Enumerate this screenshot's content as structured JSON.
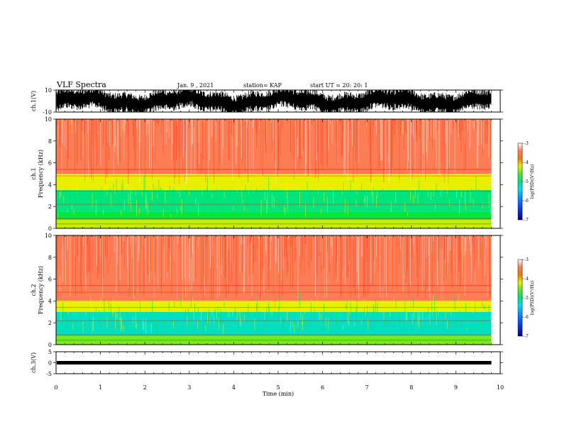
{
  "header": {
    "title": "VLF Spectra",
    "date": "Jan. 9 , 2021",
    "station": "station= KAP",
    "start": "start UT = 20: 20: 1"
  },
  "chart_data": [
    {
      "type": "line",
      "panel": "ch1-waveform",
      "ylabel": "ch.1(V)",
      "ylim": [
        -10,
        10
      ],
      "y_ticks": [
        "10",
        "-10"
      ]
    },
    {
      "type": "heatmap",
      "panel": "ch1-spectrogram",
      "ylabel": "ch.1\nFrequency (kHz)",
      "ylabel_lines": [
        "ch.1",
        "Frequency (kHz)"
      ],
      "ylim": [
        0,
        10
      ],
      "y_ticks": [
        "0",
        "2",
        "4",
        "6",
        "8",
        "10"
      ],
      "xlim": [
        0,
        10
      ],
      "bands": [
        {
          "from": 0,
          "to": 0.8,
          "level": -4.3
        },
        {
          "from": 0.8,
          "to": 1.5,
          "level": -4.8
        },
        {
          "from": 1.5,
          "to": 3.5,
          "level": -5.0
        },
        {
          "from": 3.5,
          "to": 5.0,
          "level": -4.2
        },
        {
          "from": 5.0,
          "to": 10,
          "level": -3.4
        }
      ],
      "colorbar": {
        "label": "log(PSD)(V²/Hz)",
        "ticks": [
          "-3",
          "-4",
          "-5",
          "-6",
          "-7"
        ],
        "range": [
          -7,
          -3
        ]
      }
    },
    {
      "type": "heatmap",
      "panel": "ch2-spectrogram",
      "ylabel": "ch.2\nFrequency (kHz)",
      "ylabel_lines": [
        "ch.2",
        "Frequency (kHz)"
      ],
      "ylim": [
        0,
        10
      ],
      "y_ticks": [
        "0",
        "2",
        "4",
        "6",
        "8",
        "10"
      ],
      "xlim": [
        0,
        10
      ],
      "bands": [
        {
          "from": 0,
          "to": 0.8,
          "level": -4.5
        },
        {
          "from": 0.8,
          "to": 3.0,
          "level": -5.2
        },
        {
          "from": 3.0,
          "to": 4.0,
          "level": -4.2
        },
        {
          "from": 4.0,
          "to": 10,
          "level": -3.4
        }
      ],
      "colorbar": {
        "label": "log(PSD)(V²/Hz)",
        "ticks": [
          "-3",
          "-4",
          "-5",
          "-6",
          "-7"
        ],
        "range": [
          -7,
          -3
        ]
      }
    },
    {
      "type": "line",
      "panel": "ch3-waveform",
      "ylabel": "ch.3(V)",
      "ylim": [
        -5,
        5
      ],
      "y_ticks": [
        "5",
        "0",
        "-5"
      ],
      "xlabel": "Time (min)",
      "x_ticks": [
        "0",
        "1",
        "2",
        "3",
        "4",
        "5",
        "6",
        "7",
        "8",
        "9",
        "10"
      ],
      "xlim": [
        0,
        10
      ],
      "data_end_min": 9.8
    }
  ]
}
